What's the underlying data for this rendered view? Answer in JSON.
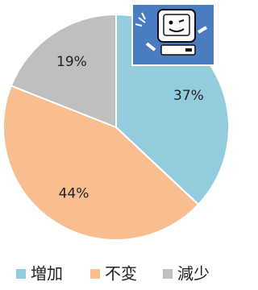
{
  "chart_data": {
    "type": "pie",
    "categories": [
      "増加",
      "不変",
      "減少"
    ],
    "values": [
      37,
      44,
      19
    ],
    "value_labels": [
      "37%",
      "44%",
      "19%"
    ],
    "colors": [
      "#93cddd",
      "#f9be8f",
      "#bfbfbf"
    ],
    "legend": "bottom"
  }
}
